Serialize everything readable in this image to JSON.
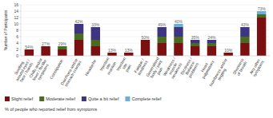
{
  "chart_data": {
    "type": "bar",
    "stacked": true,
    "ylabel": "Number of Participants",
    "categories": [
      "Swelling\naround eyes /\nface / hands",
      "Chills and/or\nfever / flu-like\nsymptoms",
      "Constipation",
      "Diarrhoea and/or\nstomach cramps",
      "Headache",
      "Injection\nsite\nreaction",
      "Injection\nsite\npain",
      "Fatigue /\ntiredness",
      "Generalised\nbody / joint\npain",
      "Weakness /\nmuscle\nweakness",
      "Dizziness /\nBalance\nproblems",
      "Heart\npalpitations",
      "Numbness and/or\ntingling",
      "Shortness\nof breath",
      "Any other\nsymptoms"
    ],
    "series": [
      {
        "name": "Slight relief",
        "color": "#7B1010",
        "values": [
          2,
          3,
          2,
          5,
          3,
          1,
          1,
          5,
          4,
          4,
          3,
          3,
          1,
          4,
          12
        ]
      },
      {
        "name": "Moderate relief",
        "color": "#4C6B22",
        "values": [
          0,
          0,
          1,
          2,
          2,
          0,
          0,
          0,
          2,
          2,
          1,
          1,
          0,
          2,
          1
        ]
      },
      {
        "name": "Quite a bit relief",
        "color": "#3D3580",
        "values": [
          0,
          0,
          0,
          3,
          4,
          0,
          0,
          0,
          3,
          3,
          1,
          1,
          0,
          3,
          0
        ]
      },
      {
        "name": "Complete relief",
        "color": "#6BAED6",
        "values": [
          0,
          0,
          0,
          0,
          0,
          0,
          0,
          0,
          0,
          1,
          0,
          0,
          0,
          0,
          1
        ]
      }
    ],
    "annotations": [
      "54%",
      "27%",
      "29%",
      "42%",
      "33%",
      "13%",
      "13%",
      "50%",
      "49%",
      "40%",
      "35%",
      "24%",
      "10%",
      "43%",
      "73%"
    ],
    "note": "% of people who reported relief from symptoms",
    "ylim": [
      0,
      16
    ],
    "yticks": [
      0,
      2,
      4,
      6,
      8,
      10,
      12,
      14,
      16
    ],
    "grid": true,
    "legend": "bottom"
  }
}
